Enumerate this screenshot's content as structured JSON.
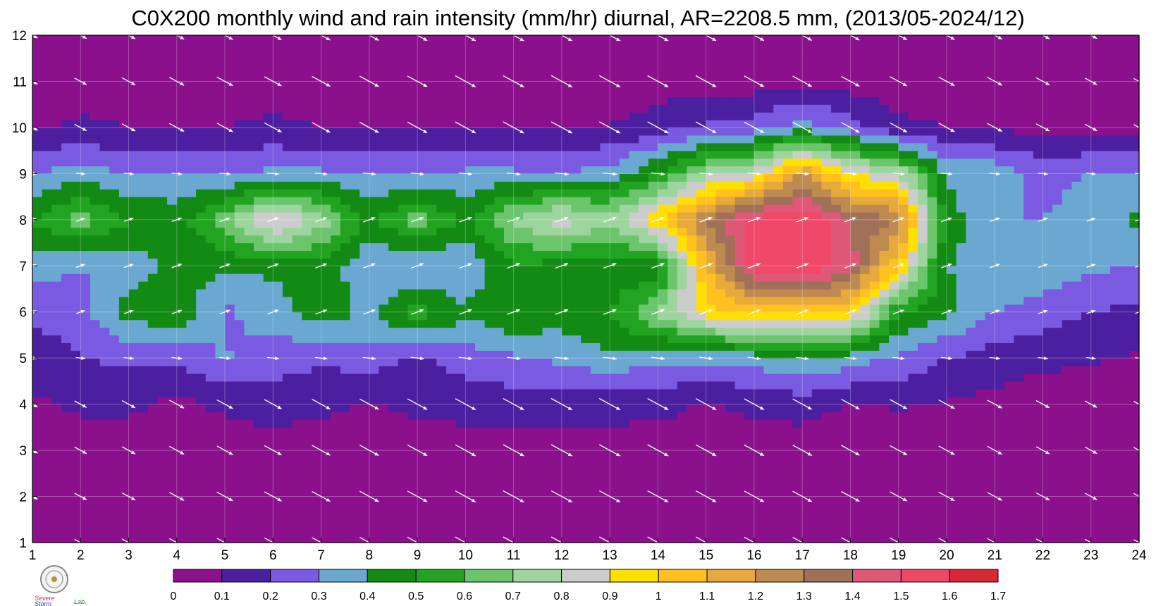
{
  "chart_data": {
    "type": "heatmap",
    "title": "C0X200 monthly wind and rain intensity (mm/hr) diurnal, AR=2208.5 mm, (2013/05-2024/12)",
    "xlabel": "",
    "ylabel": "",
    "xlim": [
      1,
      24
    ],
    "ylim": [
      1,
      12
    ],
    "x_ticks": [
      "1",
      "2",
      "3",
      "4",
      "5",
      "6",
      "7",
      "8",
      "9",
      "10",
      "11",
      "12",
      "13",
      "14",
      "15",
      "16",
      "17",
      "18",
      "19",
      "20",
      "21",
      "22",
      "23",
      "24"
    ],
    "y_ticks": [
      "1",
      "2",
      "3",
      "4",
      "5",
      "6",
      "7",
      "8",
      "9",
      "10",
      "11",
      "12"
    ],
    "grid": true,
    "hours": [
      1,
      2,
      3,
      4,
      5,
      6,
      7,
      8,
      9,
      10,
      11,
      12,
      13,
      14,
      15,
      16,
      17,
      18,
      19,
      20,
      21,
      22,
      23,
      24
    ],
    "months": [
      1,
      2,
      3,
      4,
      5,
      6,
      7,
      8,
      9,
      10,
      11,
      12
    ],
    "values": [
      [
        0.05,
        0.05,
        0.05,
        0.05,
        0.05,
        0.05,
        0.05,
        0.05,
        0.05,
        0.05,
        0.05,
        0.05,
        0.05,
        0.05,
        0.05,
        0.05,
        0.05,
        0.05,
        0.05,
        0.05,
        0.05,
        0.05,
        0.05,
        0.05
      ],
      [
        0.05,
        0.05,
        0.05,
        0.05,
        0.05,
        0.05,
        0.05,
        0.05,
        0.05,
        0.05,
        0.05,
        0.05,
        0.05,
        0.05,
        0.05,
        0.05,
        0.05,
        0.05,
        0.05,
        0.05,
        0.05,
        0.05,
        0.05,
        0.05
      ],
      [
        0.05,
        0.05,
        0.05,
        0.05,
        0.05,
        0.05,
        0.05,
        0.05,
        0.05,
        0.05,
        0.05,
        0.05,
        0.05,
        0.05,
        0.05,
        0.05,
        0.05,
        0.05,
        0.05,
        0.05,
        0.05,
        0.05,
        0.05,
        0.05
      ],
      [
        0.08,
        0.12,
        0.12,
        0.07,
        0.12,
        0.15,
        0.12,
        0.09,
        0.12,
        0.14,
        0.15,
        0.14,
        0.14,
        0.13,
        0.09,
        0.12,
        0.14,
        0.09,
        0.11,
        0.09,
        0.07,
        0.05,
        0.05,
        0.05
      ],
      [
        0.15,
        0.2,
        0.22,
        0.22,
        0.31,
        0.25,
        0.22,
        0.25,
        0.18,
        0.25,
        0.28,
        0.32,
        0.38,
        0.32,
        0.32,
        0.34,
        0.4,
        0.35,
        0.28,
        0.2,
        0.15,
        0.12,
        0.11,
        0.09
      ],
      [
        0.22,
        0.25,
        0.45,
        0.48,
        0.28,
        0.35,
        0.45,
        0.38,
        0.55,
        0.42,
        0.5,
        0.45,
        0.5,
        0.72,
        0.95,
        1.05,
        1.05,
        1.0,
        0.5,
        0.42,
        0.3,
        0.25,
        0.2,
        0.18
      ],
      [
        0.35,
        0.3,
        0.35,
        0.42,
        0.43,
        0.42,
        0.48,
        0.3,
        0.3,
        0.3,
        0.5,
        0.45,
        0.42,
        0.42,
        1.1,
        1.55,
        1.6,
        1.45,
        1.0,
        0.4,
        0.38,
        0.38,
        0.32,
        0.3
      ],
      [
        0.5,
        0.65,
        0.5,
        0.45,
        0.65,
        0.95,
        0.75,
        0.48,
        0.65,
        0.48,
        0.72,
        0.85,
        0.75,
        1.0,
        1.3,
        1.55,
        1.6,
        1.4,
        1.3,
        0.45,
        0.3,
        0.3,
        0.38,
        0.42
      ],
      [
        0.3,
        0.35,
        0.3,
        0.32,
        0.3,
        0.32,
        0.32,
        0.3,
        0.28,
        0.32,
        0.32,
        0.3,
        0.35,
        0.5,
        0.75,
        0.85,
        1.2,
        0.9,
        0.8,
        0.38,
        0.38,
        0.25,
        0.3,
        0.3
      ],
      [
        0.08,
        0.12,
        0.1,
        0.1,
        0.1,
        0.12,
        0.1,
        0.1,
        0.1,
        0.1,
        0.1,
        0.1,
        0.1,
        0.15,
        0.22,
        0.25,
        0.35,
        0.25,
        0.12,
        0.1,
        0.08,
        0.08,
        0.08,
        0.08
      ],
      [
        0.05,
        0.05,
        0.05,
        0.05,
        0.05,
        0.05,
        0.05,
        0.05,
        0.05,
        0.05,
        0.05,
        0.05,
        0.05,
        0.05,
        0.05,
        0.05,
        0.08,
        0.05,
        0.05,
        0.05,
        0.05,
        0.05,
        0.05,
        0.05
      ],
      [
        0.05,
        0.05,
        0.05,
        0.05,
        0.05,
        0.05,
        0.05,
        0.05,
        0.05,
        0.05,
        0.05,
        0.05,
        0.05,
        0.05,
        0.05,
        0.05,
        0.05,
        0.05,
        0.05,
        0.05,
        0.05,
        0.05,
        0.05,
        0.05
      ]
    ],
    "wind_note": "white arrows show mean wind vectors per hour and month",
    "colorbar": {
      "levels": [
        0,
        0.1,
        0.2,
        0.3,
        0.4,
        0.5,
        0.6,
        0.7,
        0.8,
        0.9,
        1,
        1.1,
        1.2,
        1.3,
        1.4,
        1.5,
        1.6,
        1.7
      ],
      "labels": [
        "0",
        "0.1",
        "0.2",
        "0.3",
        "0.4",
        "0.5",
        "0.6",
        "0.7",
        "0.8",
        "0.9",
        "1",
        "1.1",
        "1.2",
        "1.3",
        "1.4",
        "1.5",
        "1.6",
        "1.7"
      ],
      "colors": [
        "#8a108c",
        "#4b1fa0",
        "#7a5ae0",
        "#6aa8d2",
        "#128a14",
        "#22a422",
        "#6cc46c",
        "#9ed49e",
        "#cccccc",
        "#ffe000",
        "#ffc020",
        "#e6aa3c",
        "#bf8a50",
        "#a07058",
        "#e05878",
        "#f04868",
        "#d82838"
      ]
    }
  },
  "logo": {
    "text_severe": "Severe",
    "text_storm": "Storm",
    "text_lab": "Lab.",
    "seal_text": "NATIONAL TAIWAN"
  }
}
